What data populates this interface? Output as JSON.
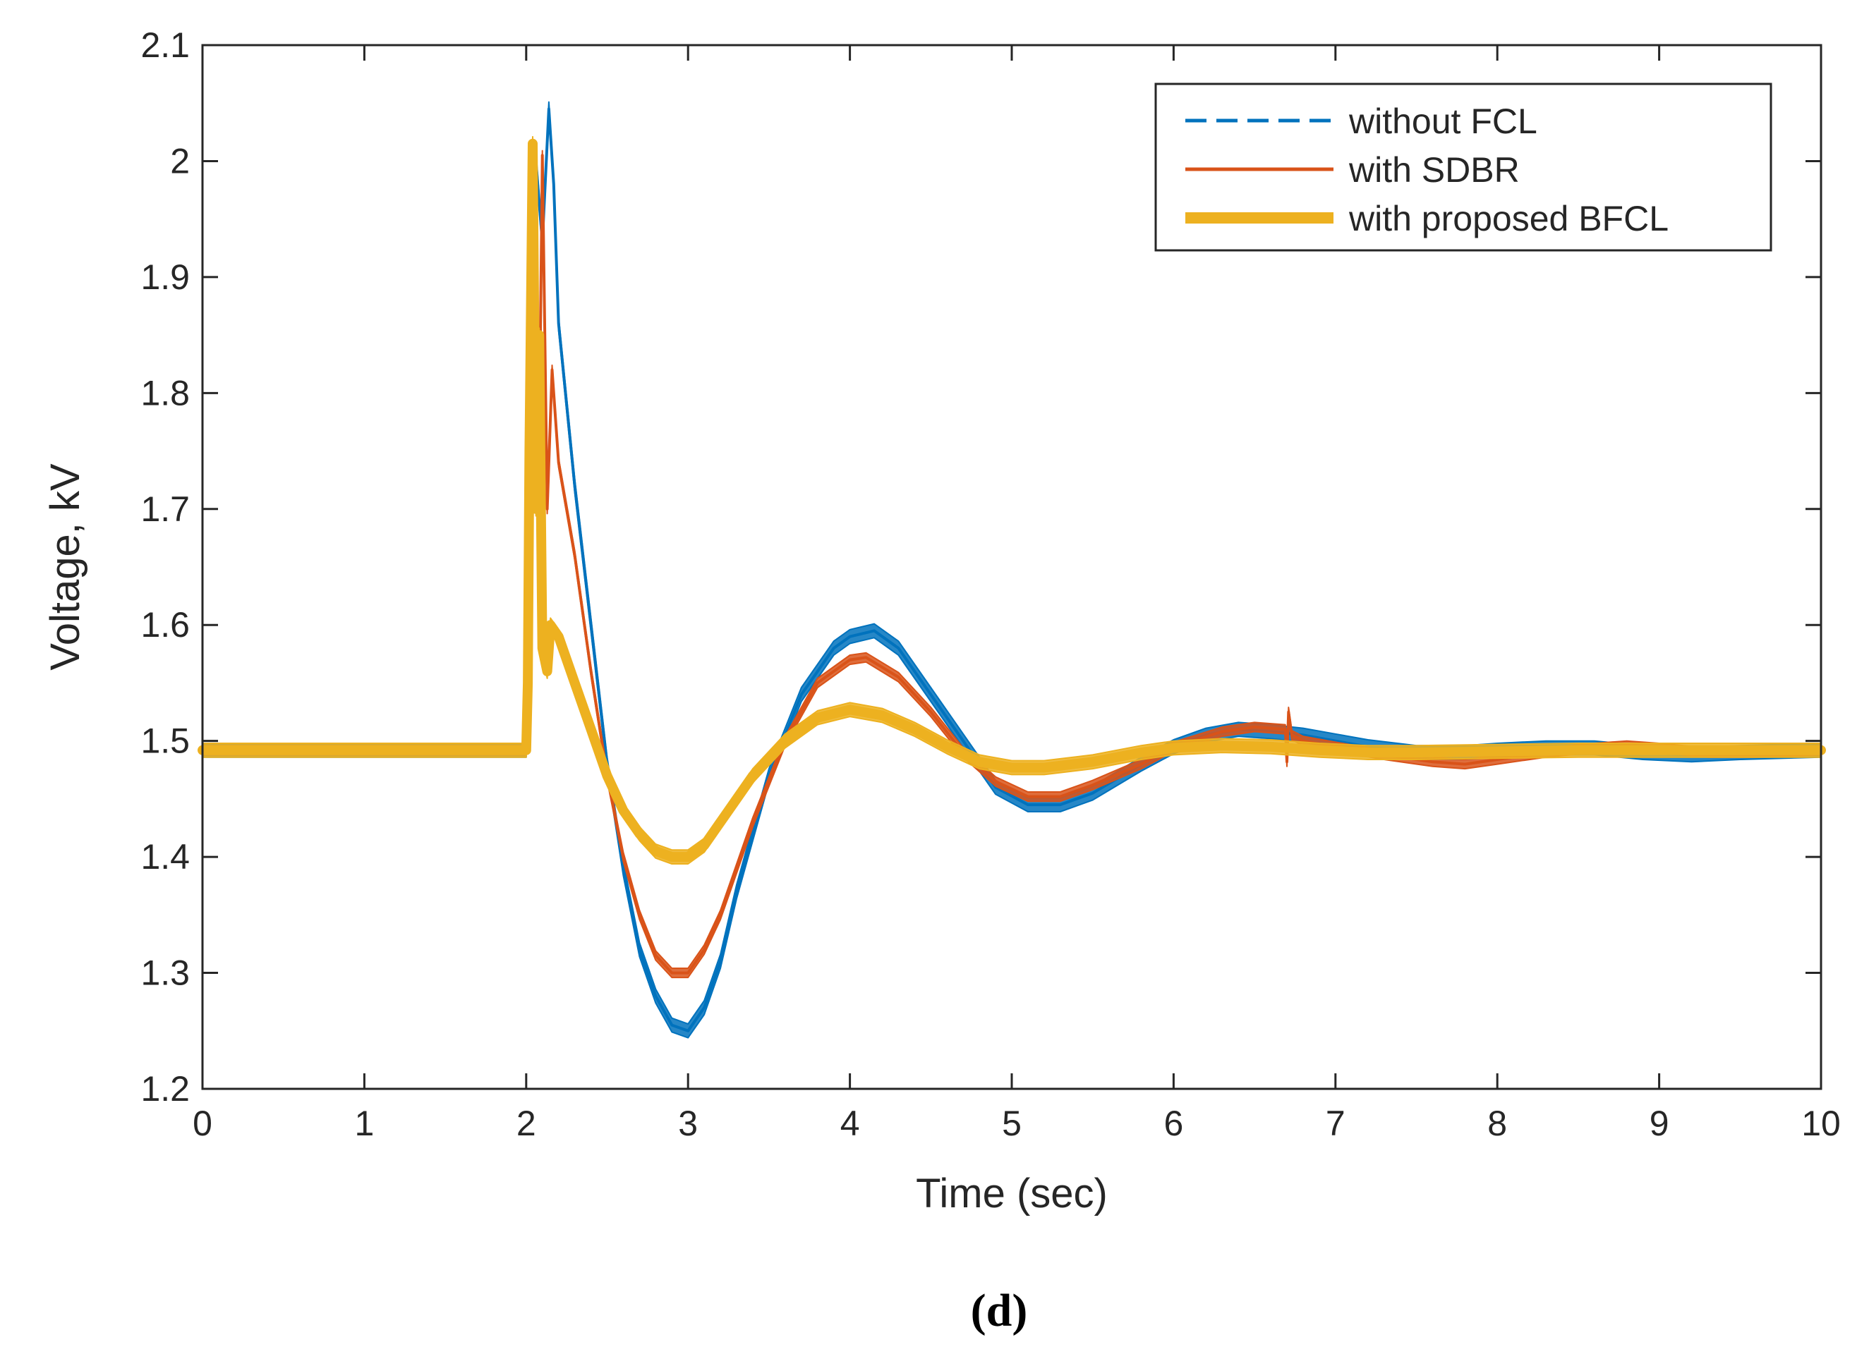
{
  "chart_data": {
    "type": "line",
    "title": "",
    "panel_label": "(d)",
    "xlabel": "Time (sec)",
    "ylabel": "Voltage, kV",
    "xlim": [
      0,
      10
    ],
    "ylim": [
      1.2,
      2.1
    ],
    "xticks": [
      0,
      1,
      2,
      3,
      4,
      5,
      6,
      7,
      8,
      9,
      10
    ],
    "yticks": [
      1.2,
      1.3,
      1.4,
      1.5,
      1.6,
      1.7,
      1.8,
      1.9,
      2,
      2.1
    ],
    "xtick_labels": [
      "0",
      "1",
      "2",
      "3",
      "4",
      "5",
      "6",
      "7",
      "8",
      "9",
      "10"
    ],
    "ytick_labels": [
      "1.2",
      "1.3",
      "1.4",
      "1.5",
      "1.6",
      "1.7",
      "1.8",
      "1.9",
      "2",
      "2.1"
    ],
    "grid": false,
    "legend_position": "top-right",
    "series": [
      {
        "name": "without FCL",
        "color": "#0072BD",
        "style": "dashed",
        "band_width": 0.012,
        "x": [
          0,
          2.0,
          2.02,
          2.06,
          2.1,
          2.14,
          2.17,
          2.2,
          2.3,
          2.4,
          2.5,
          2.6,
          2.7,
          2.8,
          2.9,
          3.0,
          3.1,
          3.2,
          3.3,
          3.5,
          3.7,
          3.9,
          4.0,
          4.15,
          4.3,
          4.5,
          4.7,
          4.9,
          5.1,
          5.3,
          5.5,
          5.8,
          6.0,
          6.2,
          6.4,
          6.6,
          6.8,
          7.0,
          7.2,
          7.5,
          7.8,
          8.0,
          8.3,
          8.6,
          8.9,
          9.2,
          9.5,
          10.0
        ],
        "y": [
          1.492,
          1.492,
          1.75,
          2.0,
          1.93,
          2.045,
          1.98,
          1.86,
          1.72,
          1.6,
          1.48,
          1.39,
          1.32,
          1.28,
          1.255,
          1.25,
          1.27,
          1.31,
          1.37,
          1.47,
          1.54,
          1.58,
          1.59,
          1.595,
          1.58,
          1.54,
          1.5,
          1.46,
          1.445,
          1.445,
          1.455,
          1.48,
          1.495,
          1.505,
          1.51,
          1.508,
          1.505,
          1.5,
          1.495,
          1.49,
          1.49,
          1.492,
          1.494,
          1.494,
          1.49,
          1.488,
          1.49,
          1.492
        ]
      },
      {
        "name": "with SDBR",
        "color": "#D95319",
        "style": "solid",
        "band_width": 0.008,
        "x": [
          0,
          2.0,
          2.02,
          2.05,
          2.08,
          2.1,
          2.13,
          2.16,
          2.2,
          2.3,
          2.4,
          2.5,
          2.6,
          2.7,
          2.8,
          2.9,
          3.0,
          3.1,
          3.2,
          3.4,
          3.6,
          3.8,
          4.0,
          4.1,
          4.3,
          4.5,
          4.7,
          4.9,
          5.1,
          5.3,
          5.5,
          5.8,
          6.0,
          6.3,
          6.5,
          6.69,
          6.7,
          6.71,
          6.73,
          6.8,
          7.0,
          7.3,
          7.6,
          7.8,
          8.0,
          8.3,
          8.6,
          8.8,
          9.0,
          9.3,
          9.6,
          10.0
        ],
        "y": [
          1.492,
          1.492,
          1.65,
          1.9,
          1.75,
          2.005,
          1.7,
          1.82,
          1.74,
          1.66,
          1.56,
          1.47,
          1.4,
          1.35,
          1.315,
          1.3,
          1.3,
          1.32,
          1.35,
          1.43,
          1.5,
          1.55,
          1.57,
          1.572,
          1.555,
          1.525,
          1.49,
          1.465,
          1.452,
          1.452,
          1.462,
          1.48,
          1.495,
          1.508,
          1.512,
          1.51,
          1.482,
          1.525,
          1.505,
          1.5,
          1.495,
          1.488,
          1.482,
          1.48,
          1.484,
          1.49,
          1.494,
          1.496,
          1.494,
          1.49,
          1.49,
          1.492
        ]
      },
      {
        "name": "with proposed BFCL",
        "color": "#EDB120",
        "style": "solid",
        "band_width": 0.012,
        "x": [
          0,
          2.0,
          2.01,
          2.02,
          2.04,
          2.06,
          2.08,
          2.1,
          2.13,
          2.15,
          2.2,
          2.3,
          2.4,
          2.5,
          2.6,
          2.7,
          2.8,
          2.9,
          3.0,
          3.1,
          3.2,
          3.4,
          3.6,
          3.8,
          4.0,
          4.2,
          4.4,
          4.6,
          4.8,
          5.0,
          5.2,
          5.5,
          5.8,
          6.0,
          6.3,
          6.6,
          6.9,
          7.2,
          7.5,
          8.0,
          8.5,
          9.0,
          9.5,
          10.0
        ],
        "y": [
          1.492,
          1.492,
          1.55,
          1.75,
          2.015,
          1.7,
          1.85,
          1.58,
          1.56,
          1.6,
          1.59,
          1.55,
          1.51,
          1.47,
          1.44,
          1.42,
          1.405,
          1.4,
          1.4,
          1.41,
          1.43,
          1.47,
          1.5,
          1.52,
          1.527,
          1.522,
          1.51,
          1.495,
          1.482,
          1.477,
          1.477,
          1.482,
          1.49,
          1.494,
          1.496,
          1.495,
          1.492,
          1.49,
          1.49,
          1.491,
          1.492,
          1.492,
          1.492,
          1.492
        ]
      }
    ]
  }
}
